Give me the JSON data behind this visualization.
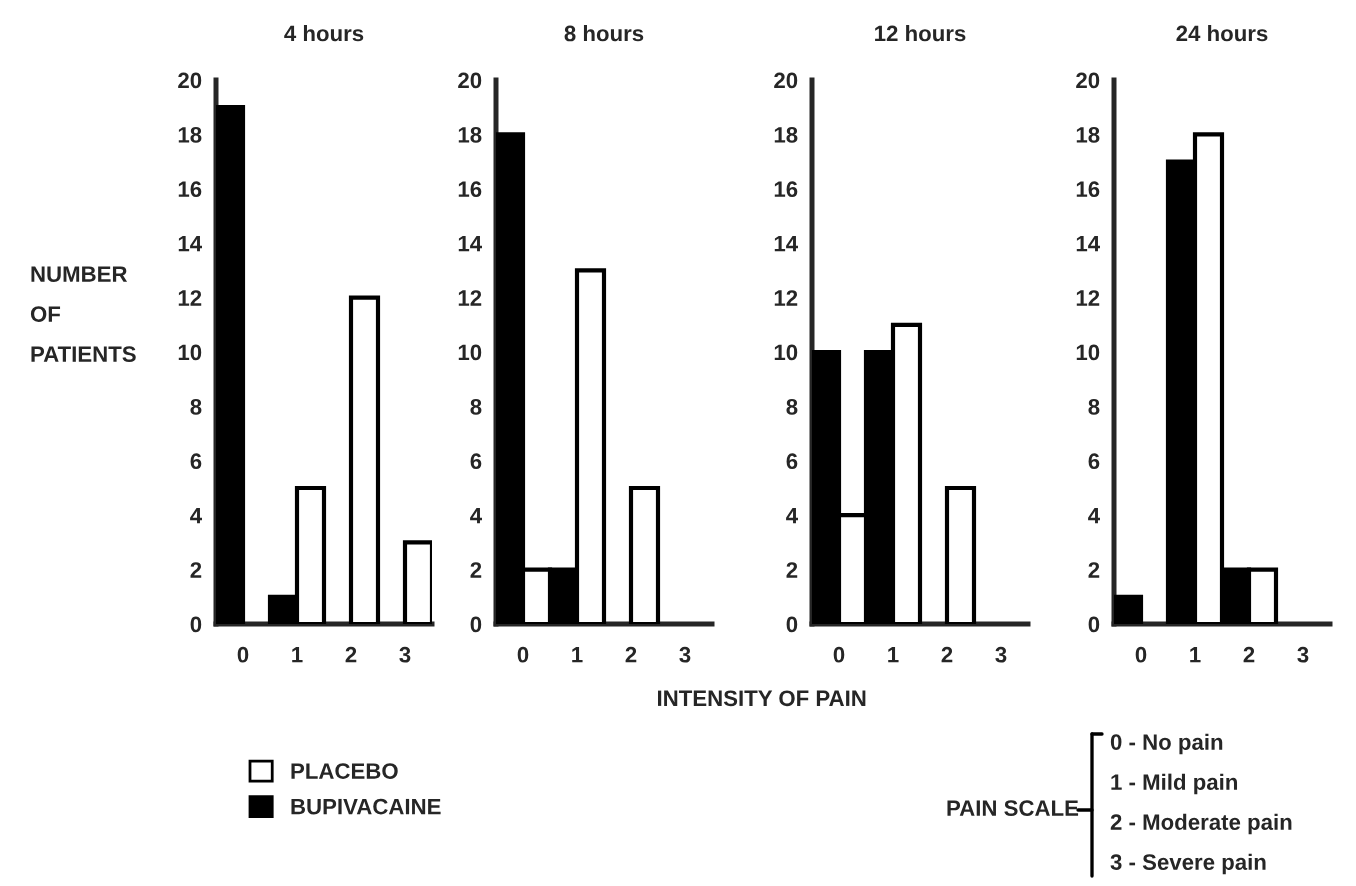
{
  "chart_data": [
    {
      "type": "bar",
      "title": "4 hours",
      "ylabel": "NUMBER\nOF\nPATIENTS",
      "categories": [
        "0",
        "1",
        "2",
        "3"
      ],
      "ylim": [
        0,
        20
      ],
      "yticks": [
        0,
        2,
        4,
        6,
        8,
        10,
        12,
        14,
        16,
        18,
        20
      ],
      "legend": "bottom",
      "series": [
        {
          "name": "BUPIVACAINE",
          "color": "#000000",
          "values": [
            19,
            1,
            0,
            0
          ]
        },
        {
          "name": "PLACEBO",
          "color": "#ffffff",
          "values": [
            0,
            5,
            12,
            3
          ]
        }
      ]
    },
    {
      "type": "bar",
      "title": "8 hours",
      "xlabel": "INTENSITY OF PAIN",
      "categories": [
        "0",
        "1",
        "2",
        "3"
      ],
      "ylim": [
        0,
        20
      ],
      "yticks": [
        0,
        2,
        4,
        6,
        8,
        10,
        12,
        14,
        16,
        18,
        20
      ],
      "series": [
        {
          "color": "#000000",
          "values": [
            18,
            2,
            0,
            0
          ]
        },
        {
          "color": "#ffffff",
          "values": [
            2,
            13,
            5,
            0
          ]
        }
      ]
    },
    {
      "type": "bar",
      "title": "12 hours",
      "categories": [
        "0",
        "1",
        "2",
        "3"
      ],
      "ylim": [
        0,
        20
      ],
      "yticks": [
        0,
        2,
        4,
        6,
        8,
        10,
        12,
        14,
        16,
        18,
        20
      ],
      "series": [
        {
          "color": "#000000",
          "values": [
            10,
            10,
            0,
            0
          ]
        },
        {
          "color": "#ffffff",
          "values": [
            4,
            11,
            5,
            0
          ]
        }
      ]
    },
    {
      "type": "bar",
      "title": "24 hours",
      "categories": [
        "0",
        "1",
        "2",
        "3"
      ],
      "ylim": [
        0,
        20
      ],
      "yticks": [
        0,
        2,
        4,
        6,
        8,
        10,
        12,
        14,
        16,
        18,
        20
      ],
      "annotations": [
        "PAIN SCALE",
        "0 - No pain",
        "1 - Mild pain",
        "2 - Moderate pain",
        "3 - Severe pain"
      ],
      "series": [
        {
          "color": "#000000",
          "values": [
            1,
            17,
            2,
            0
          ]
        },
        {
          "color": "#ffffff",
          "values": [
            0,
            18,
            2,
            0
          ]
        }
      ]
    }
  ]
}
